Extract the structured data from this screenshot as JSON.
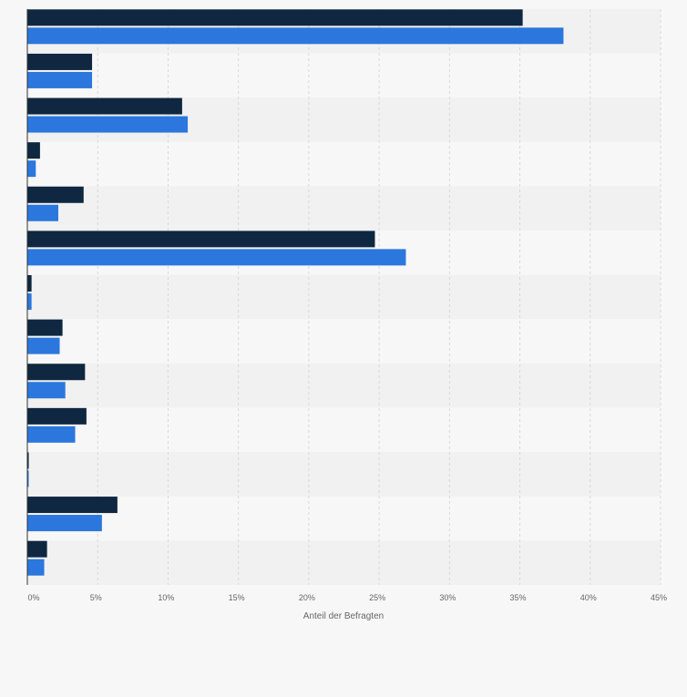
{
  "chart_data": {
    "type": "bar",
    "orientation": "horizontal",
    "categories": [
      "",
      "",
      "",
      "",
      "",
      "",
      "",
      "",
      "",
      "",
      "",
      "",
      ""
    ],
    "series": [
      {
        "name": "",
        "color": "#0f2740",
        "values": [
          35.2,
          4.6,
          11.0,
          0.9,
          4.0,
          24.7,
          0.3,
          2.5,
          4.1,
          4.2,
          0.1,
          6.4,
          1.4
        ]
      },
      {
        "name": "",
        "color": "#2b77dd",
        "values": [
          38.1,
          4.6,
          11.4,
          0.6,
          2.2,
          26.9,
          0.3,
          2.3,
          2.7,
          3.4,
          0.1,
          5.3,
          1.2
        ]
      }
    ],
    "xlabel": "Anteil der Befragten",
    "ylabel": "",
    "xlim": [
      0,
      45
    ],
    "xticks": [
      0,
      5,
      10,
      15,
      20,
      25,
      30,
      35,
      40,
      45
    ],
    "xtick_labels": [
      "0%",
      "5%",
      "10%",
      "15%",
      "20%",
      "25%",
      "30%",
      "35%",
      "40%",
      "45%"
    ],
    "grid": true,
    "legend": "none"
  }
}
